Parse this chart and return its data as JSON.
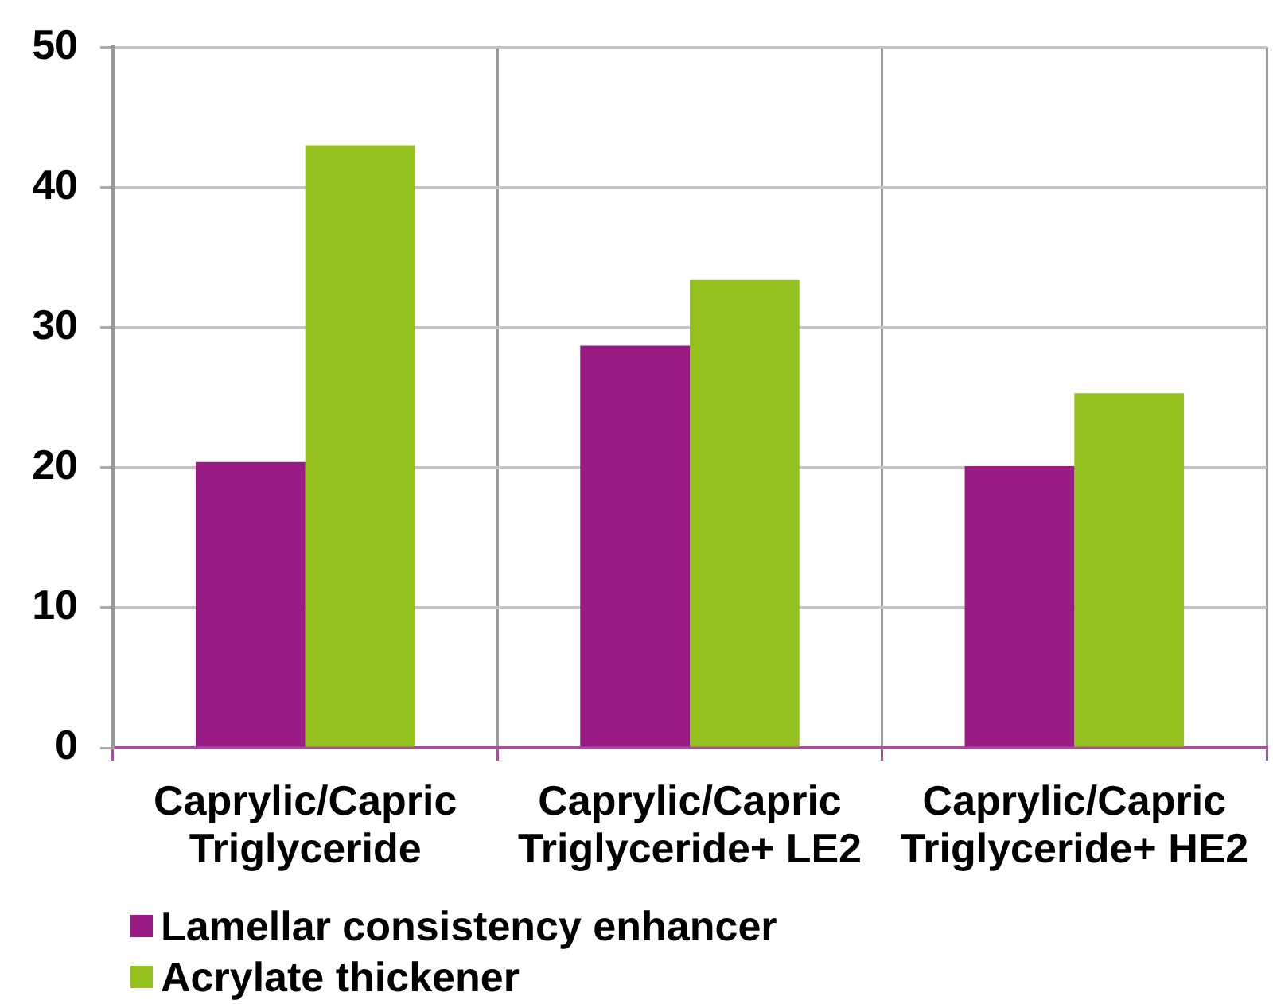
{
  "chart_data": {
    "type": "bar",
    "categories": [
      "Caprylic/Capric Triglyceride",
      "Caprylic/Capric Triglyceride+ LE2",
      "Caprylic/Capric Triglyceride+ HE2"
    ],
    "series": [
      {
        "name": "Lamellar consistency enhancer",
        "color": "#9b1b84",
        "values": [
          20.4,
          28.7,
          20.1
        ]
      },
      {
        "name": "Acrylate thickener",
        "color": "#95c11f",
        "values": [
          43.0,
          33.4,
          25.3
        ]
      }
    ],
    "ylim": [
      0,
      50
    ],
    "yticks": [
      0,
      10,
      20,
      30,
      40,
      50
    ],
    "grid": true,
    "legend": "bottom left"
  }
}
